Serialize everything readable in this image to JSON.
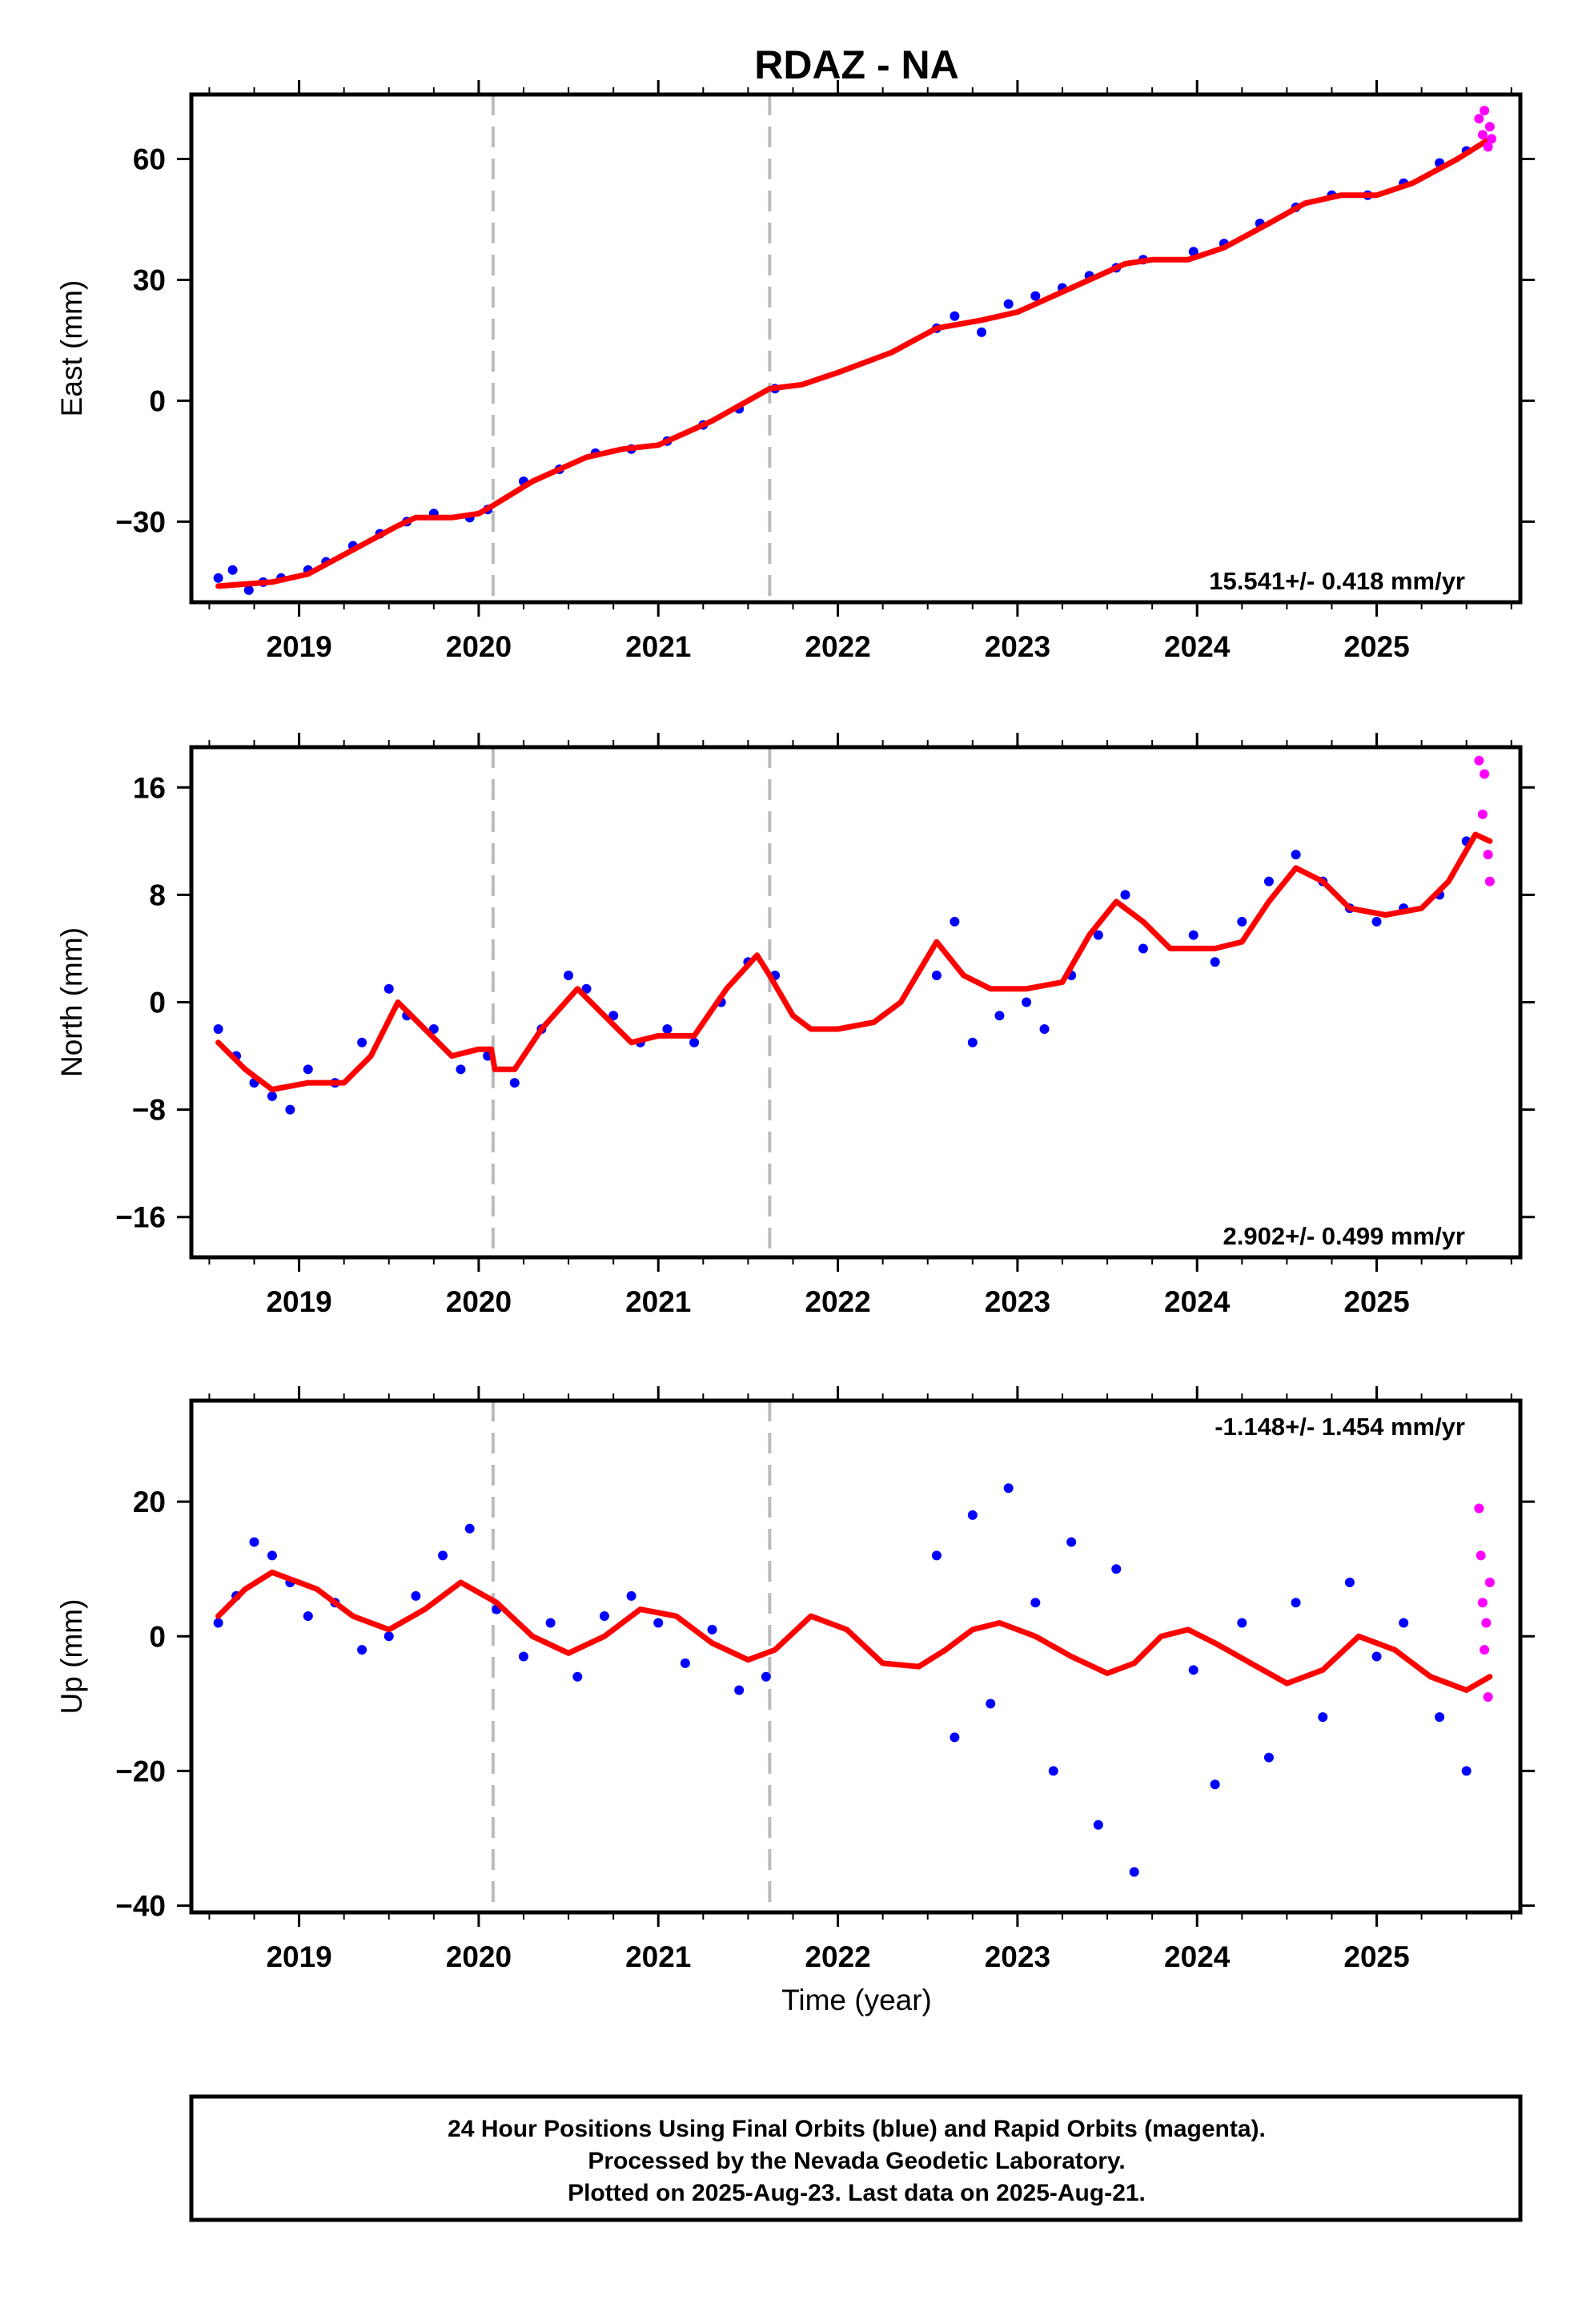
{
  "title": "RDAZ - NA",
  "xlabel": "Time (year)",
  "footer": {
    "lines": [
      "24 Hour Positions Using Final Orbits (blue) and Rapid Orbits (magenta).",
      "Processed by the Nevada Geodetic Laboratory.",
      "Plotted on 2025-Aug-23. Last data on 2025-Aug-21."
    ]
  },
  "colors": {
    "final_orbits": "#0000ff",
    "rapid_orbits": "#ff00ff",
    "model": "#ff0000",
    "vertical_marker": "#bbbbbb"
  },
  "chart_data": [
    {
      "type": "scatter",
      "name": "east",
      "ylabel": "East (mm)",
      "rate_text": "15.541+/- 0.418 mm/yr",
      "xlim": [
        2018.4,
        2025.8
      ],
      "ylim": [
        -50,
        76
      ],
      "x_ticks": [
        2019,
        2020,
        2021,
        2022,
        2023,
        2024,
        2025
      ],
      "y_ticks": [
        60,
        30,
        0,
        -30
      ],
      "y_tick_labels": [
        "60",
        "30",
        "0",
        "−30"
      ],
      "markers": [
        2020.08,
        2021.62
      ],
      "model": {
        "x": [
          2018.55,
          2018.85,
          2019.05,
          2019.3,
          2019.55,
          2019.65,
          2019.85,
          2020.0,
          2020.08,
          2020.3,
          2020.6,
          2020.8,
          2021.0,
          2021.3,
          2021.62,
          2021.8,
          2022.0,
          2022.3,
          2022.55,
          2022.8,
          2023.0,
          2023.3,
          2023.6,
          2023.75,
          2023.95,
          2024.15,
          2024.4,
          2024.6,
          2024.8,
          2025.0,
          2025.2,
          2025.45,
          2025.63
        ],
        "y": [
          -46,
          -45,
          -43,
          -37,
          -31,
          -29,
          -29,
          -28,
          -26,
          -20,
          -14,
          -12,
          -11,
          -5,
          3,
          4,
          7,
          12,
          18,
          20,
          22,
          28,
          34,
          35,
          35,
          38,
          44,
          49,
          51,
          51,
          54,
          60,
          65
        ]
      },
      "final_points": {
        "x": [
          2018.55,
          2018.63,
          2018.72,
          2018.8,
          2018.9,
          2019.05,
          2019.15,
          2019.3,
          2019.45,
          2019.6,
          2019.75,
          2019.95,
          2020.05,
          2020.25,
          2020.45,
          2020.65,
          2020.85,
          2021.05,
          2021.25,
          2021.45,
          2021.65,
          2022.55,
          2022.65,
          2022.8,
          2022.95,
          2023.1,
          2023.25,
          2023.4,
          2023.55,
          2023.7,
          2023.98,
          2024.15,
          2024.35,
          2024.55,
          2024.75,
          2024.95,
          2025.15,
          2025.35,
          2025.5
        ],
        "y": [
          -44,
          -42,
          -47,
          -45,
          -44,
          -42,
          -40,
          -36,
          -33,
          -30,
          -28,
          -29,
          -27,
          -20,
          -17,
          -13,
          -12,
          -10,
          -6,
          -2,
          3,
          18,
          21,
          17,
          24,
          26,
          28,
          31,
          33,
          35,
          37,
          39,
          44,
          48,
          51,
          51,
          54,
          59,
          62
        ]
      },
      "rapid_points": {
        "x": [
          2025.57,
          2025.59,
          2025.6,
          2025.62,
          2025.63,
          2025.64
        ],
        "y": [
          70,
          66,
          72,
          63,
          68,
          65
        ]
      }
    },
    {
      "type": "scatter",
      "name": "north",
      "ylabel": "North (mm)",
      "rate_text": "2.902+/- 0.499 mm/yr",
      "xlim": [
        2018.4,
        2025.8
      ],
      "ylim": [
        -19,
        19
      ],
      "x_ticks": [
        2019,
        2020,
        2021,
        2022,
        2023,
        2024,
        2025
      ],
      "y_ticks": [
        16,
        8,
        0,
        -8,
        -16
      ],
      "y_tick_labels": [
        "16",
        "8",
        "0",
        "−8",
        "−16"
      ],
      "markers": [
        2020.08,
        2021.62
      ],
      "model": {
        "x": [
          2018.55,
          2018.7,
          2018.85,
          2019.05,
          2019.25,
          2019.4,
          2019.55,
          2019.7,
          2019.85,
          2020.0,
          2020.07,
          2020.09,
          2020.2,
          2020.35,
          2020.55,
          2020.7,
          2020.85,
          2021.0,
          2021.2,
          2021.38,
          2021.55,
          2021.62,
          2021.75,
          2021.85,
          2022.0,
          2022.2,
          2022.35,
          2022.55,
          2022.7,
          2022.85,
          2023.05,
          2023.25,
          2023.4,
          2023.55,
          2023.7,
          2023.85,
          2024.1,
          2024.25,
          2024.4,
          2024.55,
          2024.7,
          2024.85,
          2025.05,
          2025.25,
          2025.4,
          2025.55,
          2025.63
        ],
        "y": [
          -3,
          -5,
          -6.5,
          -6,
          -6,
          -4,
          0,
          -2,
          -4,
          -3.5,
          -3.5,
          -5,
          -5,
          -2,
          1,
          -1,
          -3,
          -2.5,
          -2.5,
          1,
          3.5,
          2,
          -1,
          -2,
          -2,
          -1.5,
          0,
          4.5,
          2,
          1,
          1,
          1.5,
          5,
          7.5,
          6,
          4,
          4,
          4.5,
          7.5,
          10,
          9,
          7,
          6.5,
          7,
          9,
          12.5,
          12
        ]
      },
      "final_points": {
        "x": [
          2018.55,
          2018.65,
          2018.75,
          2018.85,
          2018.95,
          2019.05,
          2019.2,
          2019.35,
          2019.5,
          2019.6,
          2019.75,
          2019.9,
          2020.05,
          2020.2,
          2020.35,
          2020.5,
          2020.6,
          2020.75,
          2020.9,
          2021.05,
          2021.2,
          2021.35,
          2021.5,
          2021.65,
          2022.55,
          2022.65,
          2022.75,
          2022.9,
          2023.05,
          2023.15,
          2023.3,
          2023.45,
          2023.6,
          2023.7,
          2023.98,
          2024.1,
          2024.25,
          2024.4,
          2024.55,
          2024.7,
          2024.85,
          2025.0,
          2025.15,
          2025.35,
          2025.5
        ],
        "y": [
          -2,
          -4,
          -6,
          -7,
          -8,
          -5,
          -6,
          -3,
          1,
          -1,
          -2,
          -5,
          -4,
          -6,
          -2,
          2,
          1,
          -1,
          -3,
          -2,
          -3,
          0,
          3,
          2,
          2,
          6,
          -3,
          -1,
          0,
          -2,
          2,
          5,
          8,
          4,
          5,
          3,
          6,
          9,
          11,
          9,
          7,
          6,
          7,
          8,
          12
        ]
      },
      "rapid_points": {
        "x": [
          2025.57,
          2025.59,
          2025.6,
          2025.62,
          2025.63
        ],
        "y": [
          18,
          14,
          17,
          11,
          9
        ]
      }
    },
    {
      "type": "scatter",
      "name": "up",
      "ylabel": "Up (mm)",
      "rate_text": "-1.148+/- 1.454 mm/yr",
      "xlim": [
        2018.4,
        2025.8
      ],
      "ylim": [
        -41,
        35
      ],
      "x_ticks": [
        2019,
        2020,
        2021,
        2022,
        2023,
        2024,
        2025
      ],
      "y_ticks": [
        20,
        0,
        -20,
        -40
      ],
      "y_tick_labels": [
        "20",
        "0",
        "−20",
        "−40"
      ],
      "markers": [
        2020.08,
        2021.62
      ],
      "model": {
        "x": [
          2018.55,
          2018.7,
          2018.85,
          2019.1,
          2019.3,
          2019.5,
          2019.7,
          2019.9,
          2020.1,
          2020.3,
          2020.5,
          2020.7,
          2020.9,
          2021.1,
          2021.3,
          2021.5,
          2021.65,
          2021.85,
          2022.05,
          2022.25,
          2022.45,
          2022.6,
          2022.75,
          2022.9,
          2023.1,
          2023.3,
          2023.5,
          2023.65,
          2023.8,
          2023.95,
          2024.1,
          2024.3,
          2024.5,
          2024.7,
          2024.9,
          2025.1,
          2025.3,
          2025.5,
          2025.63
        ],
        "y": [
          3,
          7,
          9.5,
          7,
          3,
          1,
          4,
          8,
          5,
          0,
          -2.5,
          0,
          4,
          3,
          -1,
          -3.5,
          -2,
          3,
          1,
          -4,
          -4.5,
          -2,
          1,
          2,
          0,
          -3,
          -5.5,
          -4,
          0,
          1,
          -1,
          -4,
          -7,
          -5,
          0,
          -2,
          -6,
          -8,
          -6
        ]
      },
      "final_points": {
        "x": [
          2018.55,
          2018.65,
          2018.75,
          2018.85,
          2018.95,
          2019.05,
          2019.2,
          2019.35,
          2019.5,
          2019.65,
          2019.8,
          2019.95,
          2020.1,
          2020.25,
          2020.4,
          2020.55,
          2020.7,
          2020.85,
          2021.0,
          2021.15,
          2021.3,
          2021.45,
          2021.6,
          2022.55,
          2022.65,
          2022.75,
          2022.85,
          2022.95,
          2023.1,
          2023.2,
          2023.3,
          2023.45,
          2023.55,
          2023.65,
          2023.98,
          2024.1,
          2024.25,
          2024.4,
          2024.55,
          2024.7,
          2024.85,
          2025.0,
          2025.15,
          2025.35,
          2025.5
        ],
        "y": [
          2,
          6,
          14,
          12,
          8,
          3,
          5,
          -2,
          0,
          6,
          12,
          16,
          4,
          -3,
          2,
          -6,
          3,
          6,
          2,
          -4,
          1,
          -8,
          -6,
          12,
          -15,
          18,
          -10,
          22,
          5,
          -20,
          14,
          -28,
          10,
          -35,
          -5,
          -22,
          2,
          -18,
          5,
          -12,
          8,
          -3,
          2,
          -12,
          -20
        ]
      },
      "rapid_points": {
        "x": [
          2025.57,
          2025.58,
          2025.59,
          2025.6,
          2025.61,
          2025.62,
          2025.63
        ],
        "y": [
          19,
          12,
          5,
          -2,
          2,
          -9,
          8
        ]
      }
    }
  ]
}
